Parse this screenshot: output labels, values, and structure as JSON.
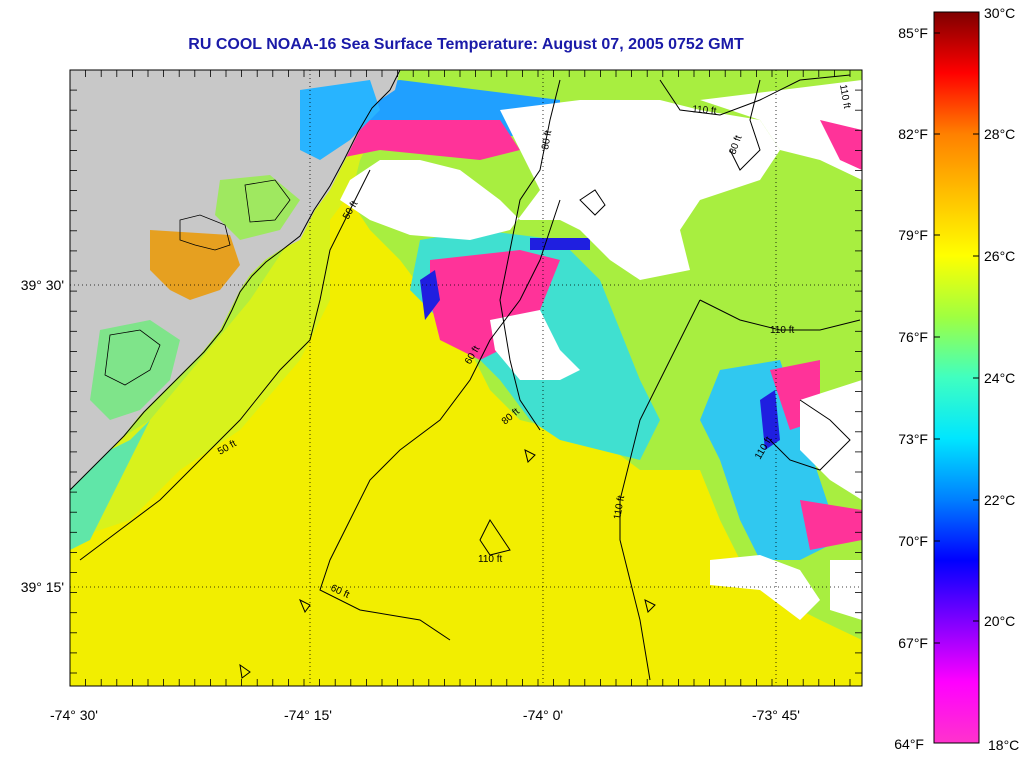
{
  "title": "RU COOL  NOAA-16  Sea Surface Temperature:  August 07, 2005 0752 GMT",
  "axes": {
    "x_ticks": [
      "-74° 30'",
      "-74° 15'",
      "-74° 0'",
      "-73° 45'"
    ],
    "y_ticks": [
      "39° 30'",
      "39° 15'"
    ]
  },
  "contours": {
    "labels": [
      "50 ft",
      "50 ft",
      "60 ft",
      "60 ft",
      "80 ft",
      "80 ft",
      "80 ft",
      "110 ft",
      "110 ft",
      "110 ft",
      "110 ft",
      "110 ft",
      "110 ft"
    ]
  },
  "colorbar": {
    "f_labels": [
      "85°F",
      "82°F",
      "79°F",
      "76°F",
      "73°F",
      "70°F",
      "67°F",
      "64°F"
    ],
    "c_labels": [
      "30°C",
      "28°C",
      "26°C",
      "24°C",
      "22°C",
      "20°C",
      "18°C"
    ],
    "colors": [
      "#ff33cc",
      "#ff00ff",
      "#7f00ff",
      "#0000ff",
      "#0080ff",
      "#00e6ff",
      "#40ffc0",
      "#a0ff40",
      "#ffff00",
      "#ffc000",
      "#ff8000",
      "#ff0000",
      "#7f0000"
    ]
  },
  "colors": {
    "land": "#c8c8c8",
    "nodata": "#ffffff",
    "warm_offshore": "#f4f000",
    "shelf": "#a8f050",
    "title": "#1a1aa8"
  }
}
